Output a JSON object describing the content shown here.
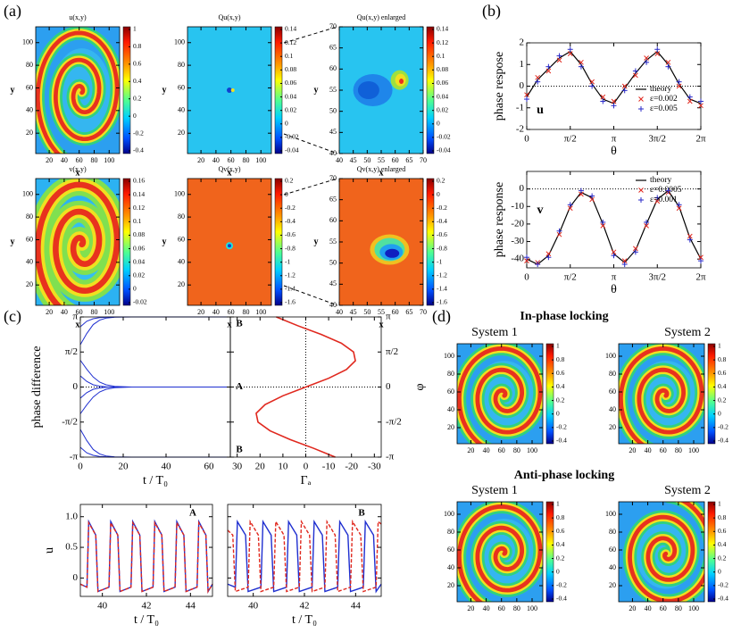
{
  "panel_labels": [
    "(a)",
    "(b)",
    "(c)",
    "(d)"
  ],
  "a": {
    "plots": [
      {
        "title": "u(x,y)",
        "xlabel": "x",
        "ylabel": "y",
        "xlim": [
          2,
          114
        ],
        "ylim": [
          2,
          114
        ],
        "xticks": [
          20,
          40,
          60,
          80,
          100
        ],
        "yticks": [
          20,
          40,
          60,
          80,
          100
        ],
        "colorbar": [
          1,
          0.8,
          0.6,
          0.4,
          0.2,
          0,
          -0.2,
          -0.4
        ]
      },
      {
        "title": "Qu(x,y)",
        "xlabel": "x",
        "ylabel": "y",
        "xlim": [
          2,
          114
        ],
        "ylim": [
          2,
          114
        ],
        "xticks": [
          20,
          40,
          60,
          80,
          100
        ],
        "yticks": [
          20,
          40,
          60,
          80,
          100
        ],
        "colorbar": [
          0.14,
          0.12,
          0.1,
          0.08,
          0.06,
          0.04,
          0.02,
          0,
          -0.02,
          -0.04
        ]
      },
      {
        "title": "Qu(x,y) enlarged",
        "xlabel": "x",
        "ylabel": "y",
        "xlim": [
          40,
          70
        ],
        "ylim": [
          40,
          70
        ],
        "xticks": [
          40,
          45,
          50,
          55,
          60,
          65,
          70
        ],
        "yticks": [
          40,
          45,
          50,
          55,
          60,
          65,
          70
        ],
        "colorbar": [
          0.14,
          0.12,
          0.1,
          0.08,
          0.06,
          0.04,
          0.02,
          0,
          -0.02,
          -0.04
        ]
      },
      {
        "title": "v(x,y)",
        "xlabel": "x",
        "ylabel": "y",
        "xlim": [
          2,
          114
        ],
        "ylim": [
          2,
          114
        ],
        "xticks": [
          20,
          40,
          60,
          80,
          100
        ],
        "yticks": [
          20,
          40,
          60,
          80,
          100
        ],
        "colorbar": [
          0.16,
          0.14,
          0.12,
          0.1,
          0.08,
          0.06,
          0.04,
          0.02,
          0,
          -0.02
        ]
      },
      {
        "title": "Qv(x,y)",
        "xlabel": "x",
        "ylabel": "y",
        "xlim": [
          2,
          114
        ],
        "ylim": [
          2,
          114
        ],
        "xticks": [
          20,
          40,
          60,
          80,
          100
        ],
        "yticks": [
          20,
          40,
          60,
          80,
          100
        ],
        "colorbar": [
          0.2,
          0,
          -0.2,
          -0.4,
          -0.6,
          -0.8,
          -1,
          -1.2,
          -1.4,
          -1.6
        ]
      },
      {
        "title": "Qv(x,y) enlarged",
        "xlabel": "x",
        "ylabel": "y",
        "xlim": [
          40,
          70
        ],
        "ylim": [
          40,
          70
        ],
        "xticks": [
          40,
          45,
          50,
          55,
          60,
          65,
          70
        ],
        "yticks": [
          40,
          45,
          50,
          55,
          60,
          65,
          70
        ],
        "colorbar": [
          0.2,
          0,
          -0.2,
          -0.4,
          -0.6,
          -0.8,
          -1,
          -1.2,
          -1.4,
          -1.6
        ]
      }
    ]
  },
  "b": {
    "plots": [
      {
        "ylabel": "phase respose",
        "tag": "u",
        "xlabel": "θ",
        "xlim": [
          0,
          6.2832
        ],
        "ylim": [
          -2,
          2
        ],
        "yticks": [
          -2,
          -1,
          0,
          1,
          2
        ],
        "xticks": [
          0,
          {
            "value": 1.5708,
            "label": "π/2"
          },
          {
            "value": 3.1416,
            "label": "π"
          },
          {
            "value": 4.7124,
            "label": "3π/2"
          },
          {
            "value": 6.2832,
            "label": "2π"
          }
        ],
        "theta": [
          0,
          0.3927,
          0.7854,
          1.1781,
          1.5708,
          1.9635,
          2.3562,
          2.7489,
          3.1416,
          3.5343,
          3.927,
          4.3197,
          4.7124,
          5.1051,
          5.4978,
          5.8905,
          6.2832
        ],
        "series": [
          {
            "name": "theory",
            "color": "#000000",
            "values": [
              -0.5,
              0.3,
              0.8,
              1.3,
              1.6,
              1.0,
              0.1,
              -0.6,
              -0.8,
              -0.1,
              0.6,
              1.2,
              1.6,
              1.0,
              0.1,
              -0.6,
              -0.8
            ]
          },
          {
            "name": "ε=0.002",
            "color": "#e0281e",
            "marker": "x",
            "values": [
              -0.4,
              0.4,
              0.7,
              1.2,
              1.5,
              1.1,
              0.2,
              -0.5,
              -0.7,
              0.0,
              0.5,
              1.3,
              1.5,
              1.1,
              0.0,
              -0.7,
              -0.9
            ]
          },
          {
            "name": "ε=0.005",
            "color": "#2a2ac8",
            "marker": "+",
            "values": [
              -0.6,
              0.2,
              0.9,
              1.4,
              1.7,
              0.9,
              0.0,
              -0.7,
              -0.9,
              -0.2,
              0.7,
              1.1,
              1.7,
              0.9,
              0.2,
              -0.5,
              -0.7
            ]
          }
        ]
      },
      {
        "ylabel": "phase response",
        "tag": "v",
        "xlabel": "θ",
        "xlim": [
          0,
          6.2832
        ],
        "ylim": [
          -45,
          10
        ],
        "yticks": [
          -40,
          -30,
          -20,
          -10,
          0
        ],
        "xticks": [
          0,
          {
            "value": 1.5708,
            "label": "π/2"
          },
          {
            "value": 3.1416,
            "label": "π"
          },
          {
            "value": 4.7124,
            "label": "3π/2"
          },
          {
            "value": 6.2832,
            "label": "2π"
          }
        ],
        "theta": [
          0,
          0.3927,
          0.7854,
          1.1781,
          1.5708,
          1.9635,
          2.3562,
          2.7489,
          3.1416,
          3.5343,
          3.927,
          4.3197,
          4.7124,
          5.1051,
          5.4978,
          5.8905,
          6.2832
        ],
        "series": [
          {
            "name": "theory",
            "color": "#000000",
            "values": [
              -40,
              -43,
              -38,
              -25,
              -10,
              -2,
              -5,
              -20,
              -37,
              -42,
              -35,
              -20,
              -6,
              -1,
              -10,
              -28,
              -40
            ]
          },
          {
            "name": "ε=0.0005",
            "color": "#e0281e",
            "marker": "x",
            "values": [
              -41,
              -42,
              -37,
              -26,
              -11,
              -3,
              -6,
              -21,
              -36,
              -41,
              -34,
              -21,
              -7,
              -2,
              -11,
              -27,
              -39
            ]
          },
          {
            "name": "ε=0.001",
            "color": "#2a2ac8",
            "marker": "+",
            "values": [
              -39,
              -43,
              -39,
              -24,
              -9,
              -1,
              -4,
              -19,
              -38,
              -43,
              -36,
              -19,
              -5,
              -1,
              -9,
              -29,
              -41
            ]
          }
        ]
      }
    ]
  },
  "c": {
    "phase": {
      "ylabel": "phase difference",
      "xlabel": "t / T₀",
      "xlim": [
        0,
        70
      ],
      "xticks": [
        0,
        20,
        40,
        60
      ],
      "ylim": [
        -3.1416,
        3.1416
      ],
      "yticks": [
        {
          "value": -3.1416,
          "label": "-π"
        },
        {
          "value": -1.5708,
          "label": "-π/2"
        },
        0,
        {
          "value": 1.5708,
          "label": "π/2"
        },
        {
          "value": 3.1416,
          "label": "π"
        }
      ],
      "color": "#1f2fd0",
      "t": [
        0,
        3,
        6,
        9,
        12,
        16,
        24,
        70
      ],
      "curves": [
        [
          2.7,
          2.95,
          3.06,
          3.11,
          3.13,
          3.14,
          3.14,
          3.14
        ],
        [
          1.9,
          2.4,
          2.8,
          3.0,
          3.09,
          3.13,
          3.14,
          3.14
        ],
        [
          1.2,
          0.8,
          0.45,
          0.22,
          0.1,
          0.03,
          0,
          0
        ],
        [
          0.5,
          0.25,
          0.1,
          0.04,
          0.01,
          0,
          0,
          0
        ],
        [
          -0.5,
          -0.25,
          -0.1,
          -0.04,
          -0.01,
          0,
          0,
          0
        ],
        [
          -1.2,
          -0.8,
          -0.45,
          -0.22,
          -0.1,
          -0.03,
          0,
          0
        ],
        [
          -1.9,
          -2.4,
          -2.8,
          -3.0,
          -3.09,
          -3.13,
          -3.14,
          -3.14
        ],
        [
          -2.7,
          -2.95,
          -3.06,
          -3.11,
          -3.13,
          -3.14,
          -3.14,
          -3.14
        ]
      ]
    },
    "gamma": {
      "xlabel": "Γₐ",
      "ylabel": "φ",
      "xlim": [
        33,
        -33
      ],
      "xticks": [
        30,
        20,
        10,
        0,
        -10,
        -20,
        -30
      ],
      "color": "#e0281e",
      "phi": [
        -3.1416,
        -2.7489,
        -2.3562,
        -1.9635,
        -1.5708,
        -1.1781,
        -0.7854,
        -0.3927,
        0,
        0.3927,
        0.7854,
        1.1781,
        1.5708,
        1.9635,
        2.3562,
        2.7489,
        3.1416
      ],
      "values": [
        -12.9,
        -3.5,
        6.8,
        15.6,
        20.9,
        21.7,
        17.8,
        10.0,
        0,
        -10.0,
        -17.8,
        -21.7,
        -20.9,
        -15.6,
        -6.8,
        3.5,
        12.9
      ],
      "points": [
        {
          "label": "B",
          "value": 3.1416
        },
        {
          "label": "A",
          "value": 0
        },
        {
          "label": "B",
          "value": -3.1416
        }
      ]
    },
    "traces": [
      {
        "label": "A",
        "ylabel": "u",
        "xlabel": "t / T₀",
        "xlim": [
          39,
          45
        ],
        "xticks": [
          40,
          42,
          44
        ],
        "ylim": [
          -0.3,
          1.2
        ],
        "yticks": [
          0,
          0.5,
          {
            "value": 1,
            "label": "1.0"
          }
        ],
        "series": [
          {
            "color": "#1f2fd0",
            "x": [
              39.0,
              39.3,
              39.38,
              39.7,
              39.8,
              40.3,
              40.38,
              40.7,
              40.8,
              41.3,
              41.38,
              41.7,
              41.8,
              42.3,
              42.38,
              42.7,
              42.8,
              43.3,
              43.38,
              43.7,
              43.8,
              44.3,
              44.38,
              44.7,
              44.8,
              45.0
            ],
            "values": [
              -0.1,
              -0.15,
              0.92,
              0.7,
              -0.22,
              -0.15,
              0.92,
              0.7,
              -0.22,
              -0.15,
              0.92,
              0.7,
              -0.22,
              -0.15,
              0.92,
              0.7,
              -0.22,
              -0.15,
              0.92,
              0.7,
              -0.22,
              -0.15,
              0.92,
              0.7,
              -0.22,
              -0.1
            ]
          },
          {
            "color": "#e0281e",
            "dash": true,
            "x": [
              39.0,
              39.3,
              39.38,
              39.7,
              39.8,
              40.3,
              40.38,
              40.7,
              40.8,
              41.3,
              41.38,
              41.7,
              41.8,
              42.3,
              42.38,
              42.7,
              42.8,
              43.3,
              43.38,
              43.7,
              43.8,
              44.3,
              44.38,
              44.7,
              44.8,
              45.0
            ],
            "values": [
              -0.1,
              -0.15,
              0.9,
              0.7,
              -0.22,
              -0.15,
              0.9,
              0.7,
              -0.22,
              -0.15,
              0.9,
              0.7,
              -0.22,
              -0.15,
              0.9,
              0.7,
              -0.22,
              -0.15,
              0.9,
              0.7,
              -0.22,
              -0.15,
              0.9,
              0.7,
              -0.22,
              -0.1
            ]
          }
        ]
      },
      {
        "label": "B",
        "xlabel": "t / T₀",
        "xlim": [
          39,
          45
        ],
        "xticks": [
          40,
          42,
          44
        ],
        "ylim": [
          -0.3,
          1.2
        ],
        "series": [
          {
            "color": "#1f2fd0",
            "x": [
              39.0,
              39.3,
              39.38,
              39.7,
              39.8,
              40.3,
              40.38,
              40.7,
              40.8,
              41.3,
              41.38,
              41.7,
              41.8,
              42.3,
              42.38,
              42.7,
              42.8,
              43.3,
              43.38,
              43.7,
              43.8,
              44.3,
              44.38,
              44.7,
              44.8,
              45.0
            ],
            "values": [
              -0.1,
              -0.15,
              0.92,
              0.7,
              -0.22,
              -0.15,
              0.92,
              0.7,
              -0.22,
              -0.15,
              0.92,
              0.7,
              -0.22,
              -0.15,
              0.92,
              0.7,
              -0.22,
              -0.15,
              0.92,
              0.7,
              -0.22,
              -0.15,
              0.92,
              0.7,
              -0.22,
              -0.1
            ]
          },
          {
            "color": "#e0281e",
            "dash": true,
            "x": [
              39.0,
              39.2,
              39.3,
              39.8,
              39.88,
              40.2,
              40.3,
              40.8,
              40.88,
              41.2,
              41.3,
              41.8,
              41.88,
              42.2,
              42.3,
              42.8,
              42.88,
              43.2,
              43.3,
              43.8,
              43.88,
              44.2,
              44.3,
              44.8,
              44.88,
              45.0
            ],
            "values": [
              0.78,
              0.7,
              -0.22,
              -0.15,
              0.92,
              0.7,
              -0.22,
              -0.15,
              0.92,
              0.7,
              -0.22,
              -0.15,
              0.92,
              0.7,
              -0.22,
              -0.15,
              0.92,
              0.7,
              -0.22,
              -0.15,
              0.92,
              0.7,
              -0.22,
              -0.15,
              0.92,
              0.88
            ]
          }
        ]
      }
    ]
  },
  "d": {
    "rows": [
      {
        "title": "In-phase locking",
        "systems": [
          {
            "name": "System 1",
            "xlim": [
              2,
              114
            ],
            "ylim": [
              2,
              114
            ],
            "xticks": [
              20,
              40,
              60,
              80,
              100
            ],
            "yticks": [
              20,
              40,
              60,
              80,
              100
            ],
            "colorbar": [
              1,
              0.8,
              0.6,
              0.4,
              0.2,
              0,
              -0.2,
              -0.4
            ]
          },
          {
            "name": "System 2",
            "xlim": [
              2,
              114
            ],
            "ylim": [
              2,
              114
            ],
            "xticks": [
              20,
              40,
              60,
              80,
              100
            ],
            "yticks": [
              20,
              40,
              60,
              80,
              100
            ],
            "colorbar": [
              1,
              0.8,
              0.6,
              0.4,
              0.2,
              0,
              -0.2,
              -0.4
            ]
          }
        ]
      },
      {
        "title": "Anti-phase locking",
        "systems": [
          {
            "name": "System 1",
            "xlim": [
              2,
              114
            ],
            "ylim": [
              2,
              114
            ],
            "xticks": [
              20,
              40,
              60,
              80,
              100
            ],
            "yticks": [
              20,
              40,
              60,
              80,
              100
            ],
            "colorbar": [
              1,
              0.8,
              0.6,
              0.4,
              0.2,
              0,
              -0.2,
              -0.4
            ]
          },
          {
            "name": "System 2",
            "xlim": [
              2,
              114
            ],
            "ylim": [
              2,
              114
            ],
            "xticks": [
              20,
              40,
              60,
              80,
              100
            ],
            "yticks": [
              20,
              40,
              60,
              80,
              100
            ],
            "colorbar": [
              1,
              0.8,
              0.6,
              0.4,
              0.2,
              0,
              -0.2,
              -0.4
            ]
          }
        ]
      }
    ]
  }
}
